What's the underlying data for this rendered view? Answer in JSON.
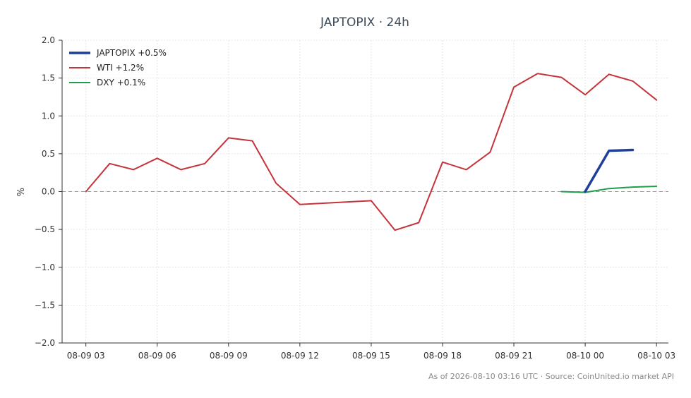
{
  "chart_data": {
    "type": "line",
    "title": "JAPTOPIX · 24h",
    "xlabel": "",
    "ylabel": "%",
    "ylim": [
      -2.0,
      2.0
    ],
    "xlim": [
      "2026-08-09 02:00",
      "2026-08-10 03:30"
    ],
    "yticks": [
      "−2.0",
      "−1.5",
      "−1.0",
      "−0.5",
      "0.0",
      "0.5",
      "1.0",
      "1.5",
      "2.0"
    ],
    "xticks": [
      "08-09 03",
      "08-09 06",
      "08-09 09",
      "08-09 12",
      "08-09 15",
      "08-09 18",
      "08-09 21",
      "08-10 00",
      "08-10 03"
    ],
    "grid": true,
    "zero_line": true,
    "legend_position": "top-left",
    "series": [
      {
        "name": "JAPTOPIX +0.5%",
        "color": "#1f3f9a",
        "x": [
          "2026-08-10 00:00",
          "2026-08-10 01:00",
          "2026-08-10 02:00"
        ],
        "y": [
          0.0,
          0.54,
          0.55
        ]
      },
      {
        "name": "WTI +1.2%",
        "color": "#c4343a",
        "x": [
          "2026-08-09 03:00",
          "2026-08-09 04:00",
          "2026-08-09 05:00",
          "2026-08-09 06:00",
          "2026-08-09 07:00",
          "2026-08-09 08:00",
          "2026-08-09 09:00",
          "2026-08-09 10:00",
          "2026-08-09 11:00",
          "2026-08-09 12:00",
          "2026-08-09 15:00",
          "2026-08-09 16:00",
          "2026-08-09 17:00",
          "2026-08-09 18:00",
          "2026-08-09 19:00",
          "2026-08-09 20:00",
          "2026-08-09 21:00",
          "2026-08-09 22:00",
          "2026-08-09 23:00",
          "2026-08-10 00:00",
          "2026-08-10 01:00",
          "2026-08-10 02:00",
          "2026-08-10 03:00"
        ],
        "y": [
          0.0,
          0.37,
          0.29,
          0.44,
          0.29,
          0.37,
          0.71,
          0.67,
          0.11,
          -0.17,
          -0.12,
          -0.51,
          -0.41,
          0.39,
          0.29,
          0.52,
          1.38,
          1.56,
          1.51,
          1.28,
          1.55,
          1.46,
          1.21
        ]
      },
      {
        "name": "DXY +0.1%",
        "color": "#1f9e4a",
        "x": [
          "2026-08-09 23:00",
          "2026-08-10 00:00",
          "2026-08-10 01:00",
          "2026-08-10 02:00",
          "2026-08-10 03:00"
        ],
        "y": [
          0.0,
          -0.01,
          0.04,
          0.06,
          0.07
        ]
      }
    ],
    "footer": "As of 2026-08-10 03:16 UTC · Source: CoinUnited.io market API"
  }
}
